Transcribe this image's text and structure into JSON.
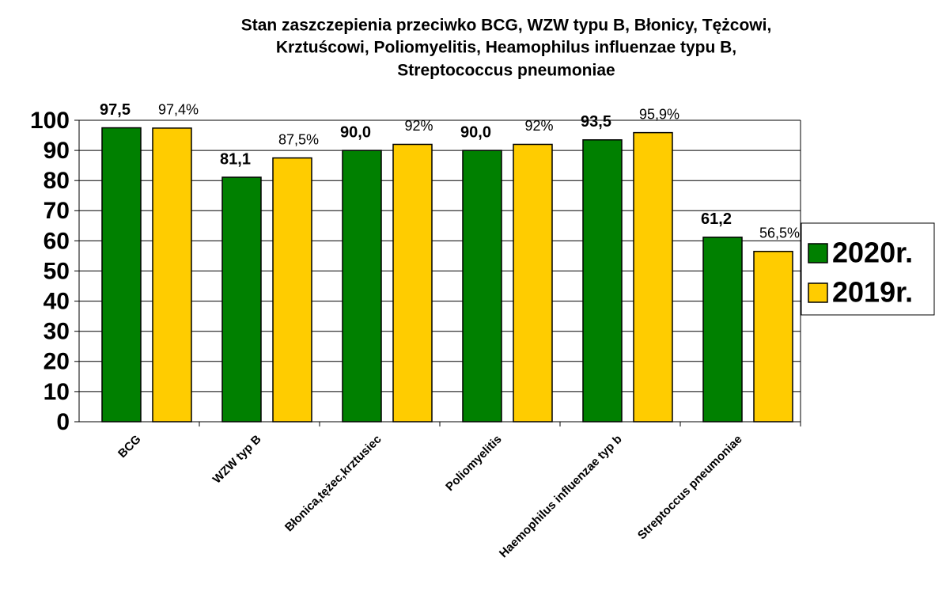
{
  "chart_data": {
    "type": "bar",
    "title": [
      "Stan zaszczepienia przeciwko BCG, WZW typu B, Błonicy, Tężcowi,",
      "Krztuścowi, Poliomyelitis, Heamophilus influenzae typu B,",
      "Streptococcus pneumoniae"
    ],
    "categories": [
      "BCG",
      "WZW typ B",
      "Błonica,tężec,krztusiec",
      "Poliomyelitis",
      "Haemophilus influenzae typ b",
      "Streptoccus pneumoniae"
    ],
    "series": [
      {
        "name": "2020r.",
        "color": "#008000",
        "values": [
          97.5,
          81.1,
          90.0,
          90.0,
          93.5,
          61.2
        ],
        "value_labels": [
          "97,5",
          "81,1",
          "90,0",
          "90,0",
          "93,5",
          "61,2"
        ]
      },
      {
        "name": "2019r.",
        "color": "#ffcc00",
        "values": [
          97.4,
          87.5,
          92,
          92,
          95.9,
          56.5
        ],
        "value_labels": [
          "97,4%",
          "87,5%",
          "92%",
          "92%",
          "95,9%",
          "56,5%"
        ]
      }
    ],
    "ylim": [
      0,
      100
    ],
    "yticks": [
      0,
      10,
      20,
      30,
      40,
      50,
      60,
      70,
      80,
      90,
      100
    ],
    "grid": true,
    "legend": "right"
  }
}
